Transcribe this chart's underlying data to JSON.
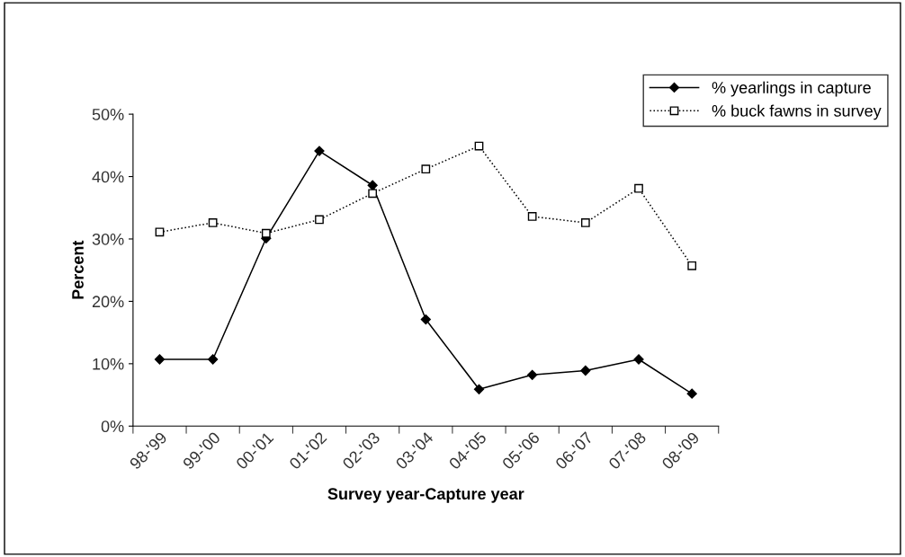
{
  "chart_data": {
    "type": "line",
    "xlabel": "Survey year-Capture year",
    "ylabel": "Percent",
    "categories": [
      "98-'99",
      "99-'00",
      "00-'01",
      "01-'02",
      "02-'03",
      "03-'04",
      "04-'05",
      "05-'06",
      "06-'07",
      "07-'08",
      "08-'09"
    ],
    "series": [
      {
        "name": "% yearlings in capture",
        "color": "#000000",
        "marker": "diamond",
        "line_style": "solid",
        "values": [
          10.7,
          10.7,
          30.1,
          44.1,
          38.6,
          17.1,
          5.9,
          8.2,
          8.9,
          10.7,
          5.2
        ]
      },
      {
        "name": "% buck fawns in survey",
        "color": "#000000",
        "marker": "square",
        "line_style": "dotted",
        "values": [
          31.1,
          32.6,
          30.9,
          33.1,
          37.3,
          41.2,
          44.9,
          33.6,
          32.6,
          38.1,
          25.7
        ]
      }
    ],
    "ylim": [
      0,
      50
    ],
    "yticks": [
      {
        "value": 0,
        "label": "0%"
      },
      {
        "value": 10,
        "label": "10%"
      },
      {
        "value": 20,
        "label": "20%"
      },
      {
        "value": 30,
        "label": "30%"
      },
      {
        "value": 40,
        "label": "40%"
      },
      {
        "value": 50,
        "label": "50%"
      }
    ],
    "grid": false,
    "legend": "top right"
  }
}
